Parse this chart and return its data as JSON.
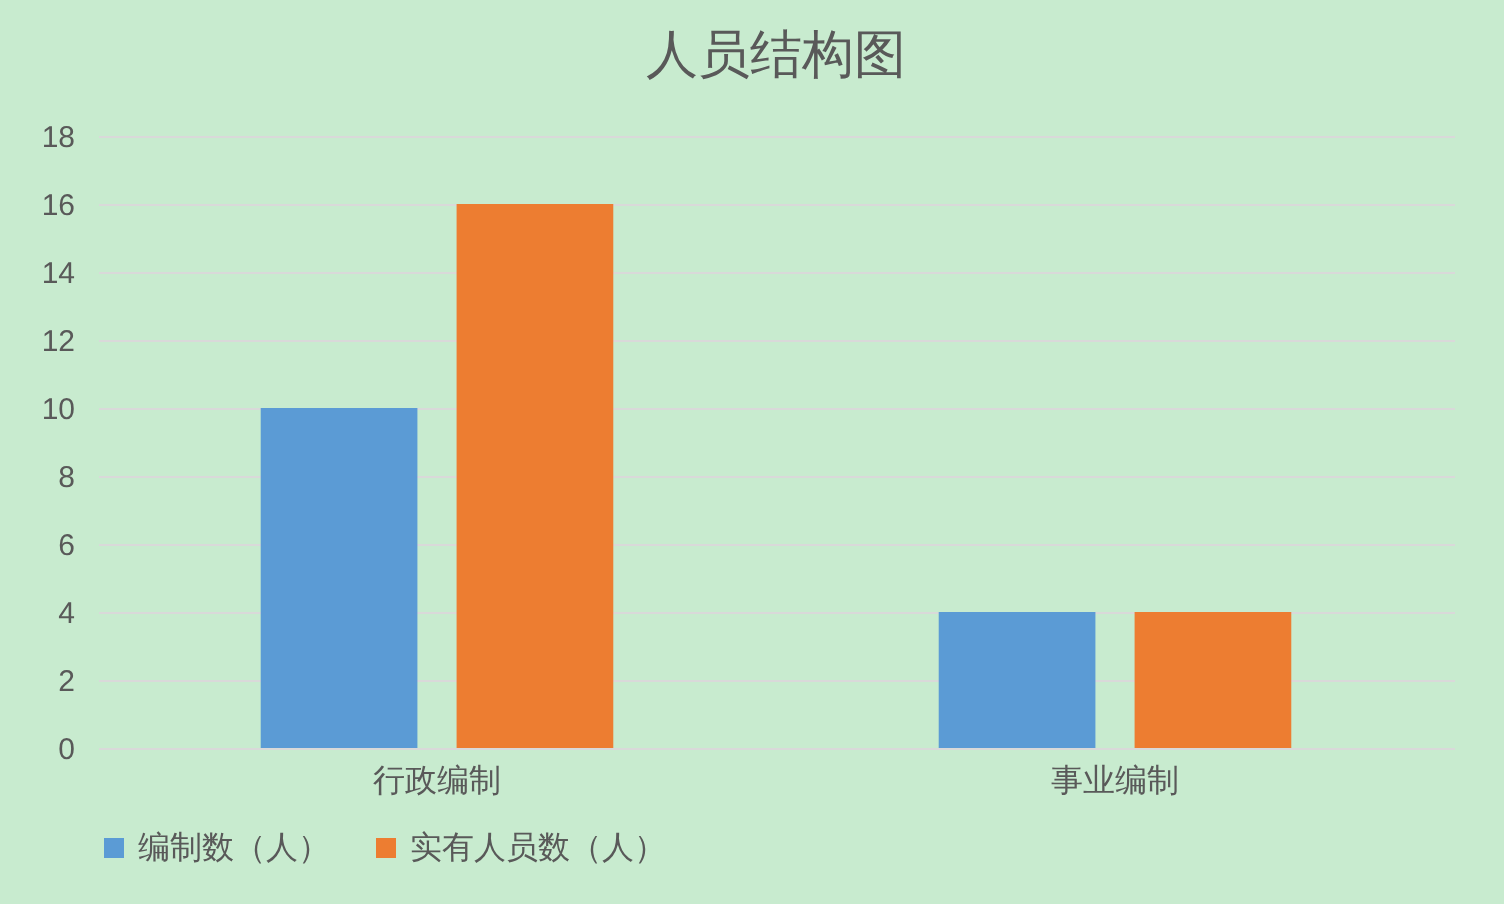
{
  "chart_data": {
    "type": "bar",
    "title": "人员结构图",
    "categories": [
      "行政编制",
      "事业编制"
    ],
    "series": [
      {
        "name": "编制数（人）",
        "color": "#5b9bd5",
        "values": [
          10,
          4
        ]
      },
      {
        "name": "实有人员数（人）",
        "color": "#ed7d31",
        "values": [
          16,
          4
        ]
      }
    ],
    "ylim": [
      0,
      18
    ],
    "yticks": [
      0,
      2,
      4,
      6,
      8,
      10,
      12,
      14,
      16,
      18
    ],
    "grid": "y",
    "legend": "bottom"
  }
}
